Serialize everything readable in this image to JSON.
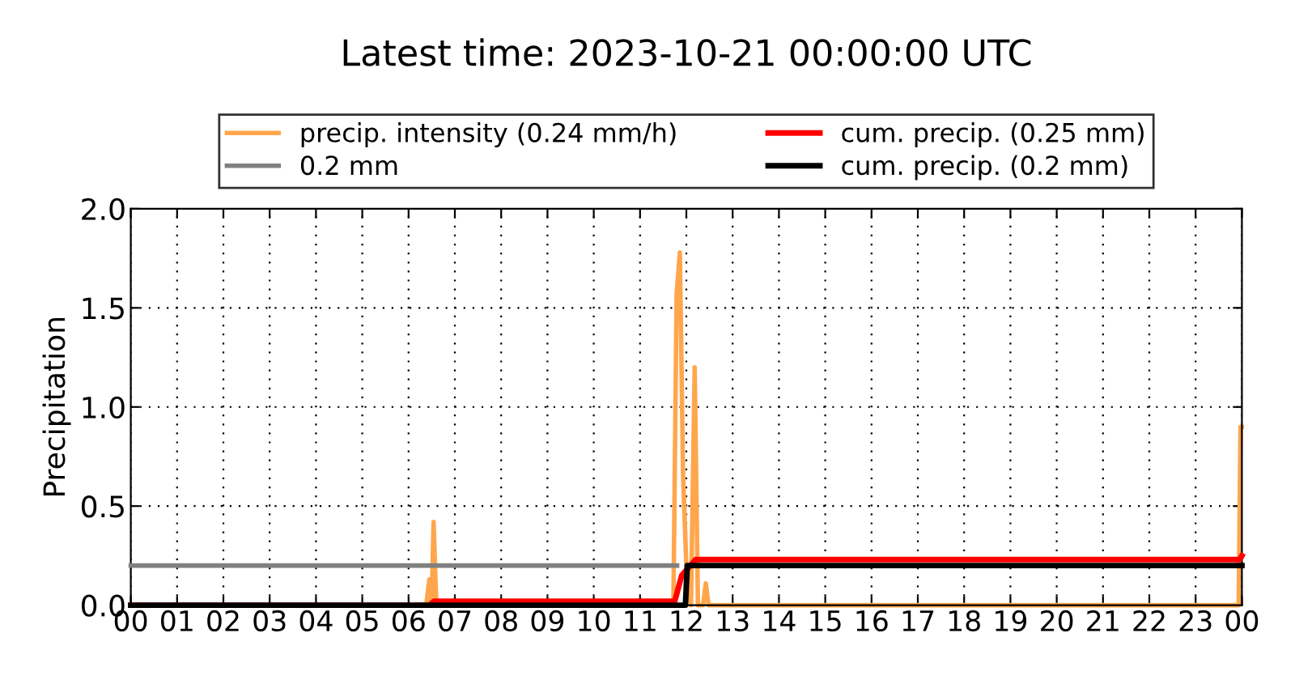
{
  "chart_data": {
    "type": "line",
    "title": "Latest time: 2023-10-21 00:00:00 UTC",
    "ylabel": "Precipitation",
    "series": [
      {
        "name": "precip. intensity (0.24 mm/h)",
        "color": "#ffa64d",
        "x": [
          0,
          6.38,
          6.45,
          6.5,
          6.54,
          6.6,
          11.72,
          11.79,
          11.86,
          11.93,
          12.0,
          12.1,
          12.18,
          12.25,
          12.36,
          12.42,
          12.48,
          23.93,
          23.97,
          24
        ],
        "values": [
          0,
          0,
          0.13,
          0,
          0.42,
          0,
          0,
          1.57,
          1.78,
          0.65,
          0.2,
          0,
          1.2,
          0,
          0,
          0.11,
          0,
          0,
          0.9,
          0.9
        ]
      },
      {
        "name": "0.2 mm",
        "color": "#808080",
        "x": [
          0,
          11.8
        ],
        "values": [
          0.2,
          0.2
        ]
      },
      {
        "name": "cum. precip. (0.25 mm)",
        "color": "#ff0000",
        "x": [
          0,
          6.45,
          6.55,
          11.75,
          11.9,
          12.2,
          23.95,
          24
        ],
        "values": [
          0,
          0,
          0.02,
          0.02,
          0.15,
          0.23,
          0.23,
          0.25
        ]
      },
      {
        "name": "cum. precip. (0.2 mm)",
        "color": "#000000",
        "x": [
          0,
          11.98,
          12.02,
          24
        ],
        "values": [
          0,
          0,
          0.2,
          0.2
        ]
      }
    ],
    "xlim": [
      0,
      24
    ],
    "xticks": [
      {
        "value": 0,
        "label": "00"
      },
      {
        "value": 1,
        "label": "01"
      },
      {
        "value": 2,
        "label": "02"
      },
      {
        "value": 3,
        "label": "03"
      },
      {
        "value": 4,
        "label": "04"
      },
      {
        "value": 5,
        "label": "05"
      },
      {
        "value": 6,
        "label": "06"
      },
      {
        "value": 7,
        "label": "07"
      },
      {
        "value": 8,
        "label": "08"
      },
      {
        "value": 9,
        "label": "09"
      },
      {
        "value": 10,
        "label": "10"
      },
      {
        "value": 11,
        "label": "11"
      },
      {
        "value": 12,
        "label": "12"
      },
      {
        "value": 13,
        "label": "13"
      },
      {
        "value": 14,
        "label": "14"
      },
      {
        "value": 15,
        "label": "15"
      },
      {
        "value": 16,
        "label": "16"
      },
      {
        "value": 17,
        "label": "17"
      },
      {
        "value": 18,
        "label": "18"
      },
      {
        "value": 19,
        "label": "19"
      },
      {
        "value": 20,
        "label": "20"
      },
      {
        "value": 21,
        "label": "21"
      },
      {
        "value": 22,
        "label": "22"
      },
      {
        "value": 23,
        "label": "23"
      },
      {
        "value": 24,
        "label": "00"
      }
    ],
    "ylim": [
      0,
      2.0
    ],
    "yticks": [
      {
        "value": 0,
        "label": "0.0"
      },
      {
        "value": 0.5,
        "label": "0.5"
      },
      {
        "value": 1.0,
        "label": "1.0"
      },
      {
        "value": 1.5,
        "label": "1.5"
      },
      {
        "value": 2.0,
        "label": "2.0"
      }
    ],
    "grid": true,
    "legend": "top",
    "line_style": "solid",
    "marker": "none"
  }
}
